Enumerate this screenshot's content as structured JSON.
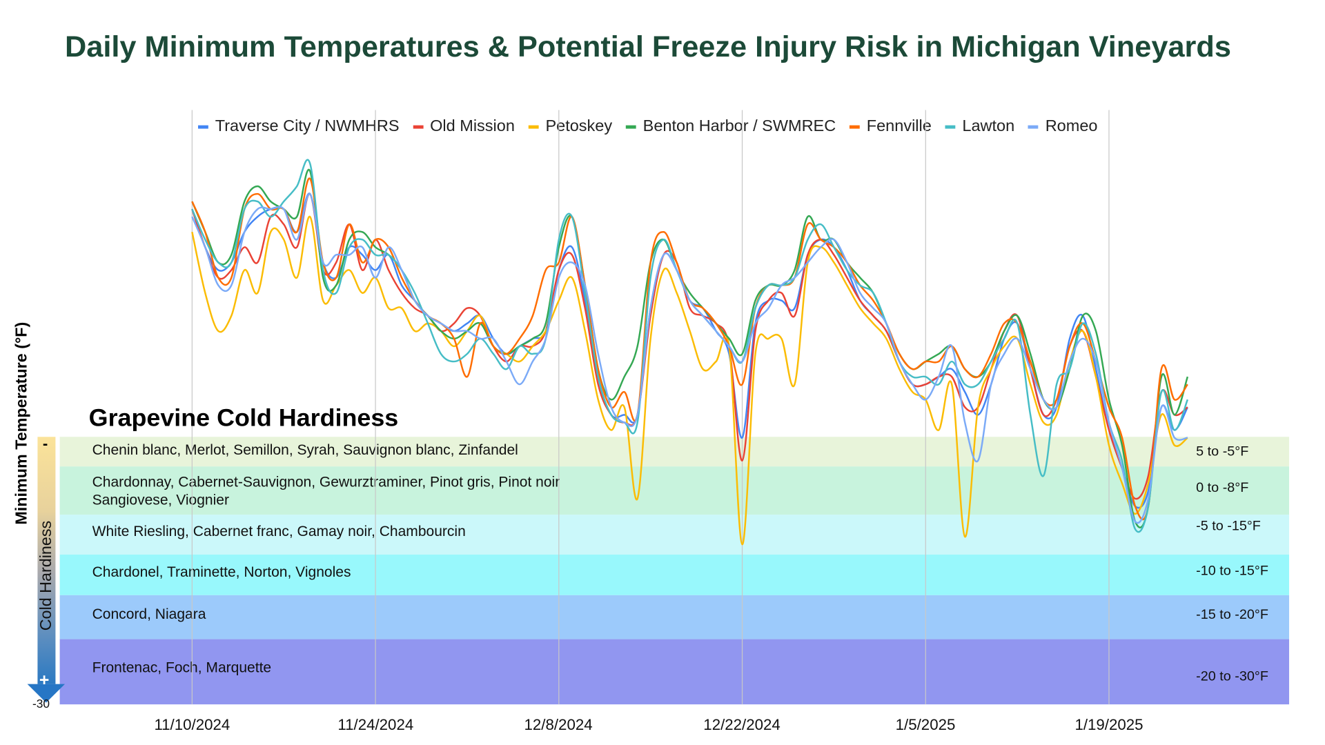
{
  "title": "Daily Minimum Temperatures & Potential Freeze Injury Risk in Michigan Vineyards",
  "hardiness": {
    "title": "Grapevine Cold Hardiness",
    "scale_label": "Cold Hardiness",
    "scale_top": "-",
    "scale_bottom": "+",
    "bands": [
      {
        "label": "Chenin blanc, Merlot, Semillon, Syrah, Sauvignon blanc, Zinfandel",
        "range": "5 to -5°F",
        "color": "#e8f4da"
      },
      {
        "label": "Chardonnay, Cabernet-Sauvignon, Gewurztraminer, Pinot gris, Pinot noir",
        "label2": " Sangiovese, Viognier",
        "range": "0 to -8°F",
        "color": "#c8f3dd"
      },
      {
        "label": "White Riesling, Cabernet franc, Gamay noir, Chambourcin",
        "range": "-5 to -15°F",
        "color": "#cbf8fa"
      },
      {
        "label": "Chardonel, Traminette, Norton, Vignoles",
        "range": "-10 to -15°F",
        "color": "#98f8fc"
      },
      {
        "label": "Concord, Niagara",
        "range": "-15 to -20°F",
        "color": "#9ccafb"
      },
      {
        "label": "Frontenac, Foch, Marquette",
        "range": "-20 to -30°F",
        "color": "#9196f0"
      }
    ]
  },
  "chart_data": {
    "type": "line",
    "title": "Daily Minimum Temperatures & Potential Freeze Injury Risk in Michigan Vineyards",
    "ylabel": "Minimum Temperature (°F)",
    "xlabel": "",
    "x_start": "11/10/2024",
    "x_step": "1 day",
    "x_tick_labels": [
      "11/10/2024",
      "11/24/2024",
      "12/8/2024",
      "12/22/2024",
      "1/5/2025",
      "1/19/2025"
    ],
    "y_tick_labels": [
      "-30"
    ],
    "ylim": [
      -30,
      48
    ],
    "grid": "vertical",
    "legend": "top",
    "series": [
      {
        "name": "Traverse City / NWMHRS",
        "color": "#4285f4",
        "values": [
          35,
          30,
          27,
          28,
          32,
          34,
          35,
          35,
          32,
          37,
          28,
          26,
          30,
          29,
          27,
          29,
          25,
          23,
          21,
          20,
          19,
          20,
          21,
          18,
          16,
          17,
          18,
          19,
          27,
          30,
          23,
          13,
          8,
          8,
          8,
          22,
          29,
          27,
          23,
          22,
          19,
          16,
          5,
          20,
          23,
          23,
          22,
          29,
          31,
          30,
          27,
          23,
          21,
          19,
          15,
          12,
          12,
          13,
          14,
          11,
          8,
          12,
          18,
          20,
          14,
          8,
          9,
          18,
          21,
          14,
          6,
          1,
          -4,
          -2,
          9,
          6,
          9
        ]
      },
      {
        "name": "Old Mission",
        "color": "#ea4335",
        "values": [
          35,
          30,
          26,
          27,
          30,
          28,
          34,
          33,
          30,
          37,
          27,
          28,
          33,
          27,
          31,
          27,
          24,
          22,
          21,
          19,
          20,
          22,
          21,
          17,
          15,
          17,
          17,
          19,
          27,
          29,
          22,
          12,
          8,
          7,
          8,
          21,
          29,
          28,
          22,
          21,
          20,
          17,
          2,
          19,
          23,
          24,
          21,
          29,
          31,
          29,
          26,
          23,
          21,
          19,
          15,
          12,
          12,
          13,
          13,
          9,
          9,
          14,
          19,
          21,
          14,
          8,
          10,
          17,
          19,
          13,
          6,
          1,
          -3,
          0,
          11,
          8,
          9
        ]
      },
      {
        "name": "Petoskey",
        "color": "#fbbc04",
        "values": [
          32,
          24,
          19,
          21,
          27,
          24,
          32,
          31,
          26,
          34,
          23,
          25,
          27,
          24,
          26,
          22,
          22,
          19,
          20,
          19,
          17,
          19,
          21,
          17,
          16,
          15,
          17,
          19,
          23,
          26,
          19,
          10,
          6,
          9,
          -3,
          18,
          27,
          24,
          19,
          14,
          15,
          17,
          -9,
          16,
          18,
          18,
          12,
          28,
          30,
          28,
          25,
          22,
          20,
          18,
          14,
          11,
          10,
          6,
          12,
          -8,
          9,
          14,
          17,
          18,
          12,
          7,
          8,
          15,
          19,
          13,
          4,
          -1,
          -5,
          -1,
          8,
          4,
          5
        ]
      },
      {
        "name": "Benton Harbor / SWMREC",
        "color": "#34a853",
        "values": [
          36,
          32,
          28,
          29,
          36,
          38,
          36,
          35,
          34,
          40,
          26,
          25,
          31,
          32,
          30,
          29,
          27,
          23,
          21,
          19,
          18,
          19,
          20,
          17,
          16,
          17,
          18,
          20,
          30,
          34,
          25,
          14,
          10,
          13,
          17,
          28,
          31,
          27,
          24,
          22,
          20,
          18,
          16,
          23,
          25,
          25,
          27,
          34,
          31,
          31,
          28,
          26,
          24,
          20,
          16,
          14,
          15,
          16,
          17,
          14,
          13,
          15,
          19,
          21,
          16,
          10,
          9,
          14,
          21,
          19,
          10,
          4,
          -6,
          -4,
          13,
          8,
          13
        ]
      },
      {
        "name": "Fennville",
        "color": "#ff6d01",
        "values": [
          36,
          32,
          26,
          26,
          35,
          37,
          35,
          35,
          32,
          39,
          28,
          26,
          33,
          28,
          31,
          30,
          26,
          23,
          21,
          20,
          18,
          13,
          20,
          17,
          16,
          18,
          21,
          27,
          28,
          34,
          25,
          14,
          9,
          11,
          8,
          28,
          32,
          28,
          23,
          22,
          20,
          17,
          12,
          22,
          25,
          25,
          26,
          33,
          31,
          30,
          28,
          25,
          23,
          20,
          16,
          14,
          15,
          15,
          17,
          14,
          13,
          16,
          20,
          20,
          15,
          10,
          10,
          17,
          20,
          15,
          9,
          5,
          -4,
          -4,
          14,
          10,
          12
        ]
      },
      {
        "name": "Lawton",
        "color": "#46bdc6",
        "values": [
          35,
          31,
          28,
          28,
          35,
          36,
          34,
          36,
          38,
          41,
          27,
          24,
          30,
          31,
          29,
          29,
          27,
          24,
          20,
          16,
          15,
          16,
          18,
          16,
          14,
          17,
          16,
          18,
          31,
          34,
          24,
          13,
          8,
          7,
          7,
          26,
          31,
          27,
          23,
          21,
          19,
          17,
          15,
          22,
          25,
          25,
          26,
          31,
          33,
          30,
          27,
          25,
          24,
          20,
          15,
          13,
          13,
          12,
          15,
          12,
          12,
          15,
          18,
          20,
          8,
          0,
          12,
          14,
          20,
          16,
          7,
          2,
          -7,
          -4,
          11,
          6,
          10
        ]
      },
      {
        "name": "Romeo",
        "color": "#7baaf7",
        "values": [
          34,
          30,
          25,
          25,
          32,
          35,
          35,
          35,
          31,
          37,
          28,
          29,
          29,
          30,
          26,
          30,
          27,
          23,
          21,
          20,
          19,
          19,
          18,
          18,
          15,
          12,
          15,
          18,
          26,
          28,
          25,
          16,
          9,
          7,
          8,
          22,
          29,
          27,
          23,
          21,
          19,
          17,
          15,
          20,
          22,
          25,
          26,
          28,
          30,
          31,
          28,
          24,
          22,
          20,
          15,
          12,
          10,
          13,
          17,
          7,
          2,
          12,
          16,
          18,
          14,
          10,
          9,
          15,
          18,
          15,
          7,
          1,
          -6,
          -3,
          9,
          5,
          5
        ]
      }
    ]
  }
}
